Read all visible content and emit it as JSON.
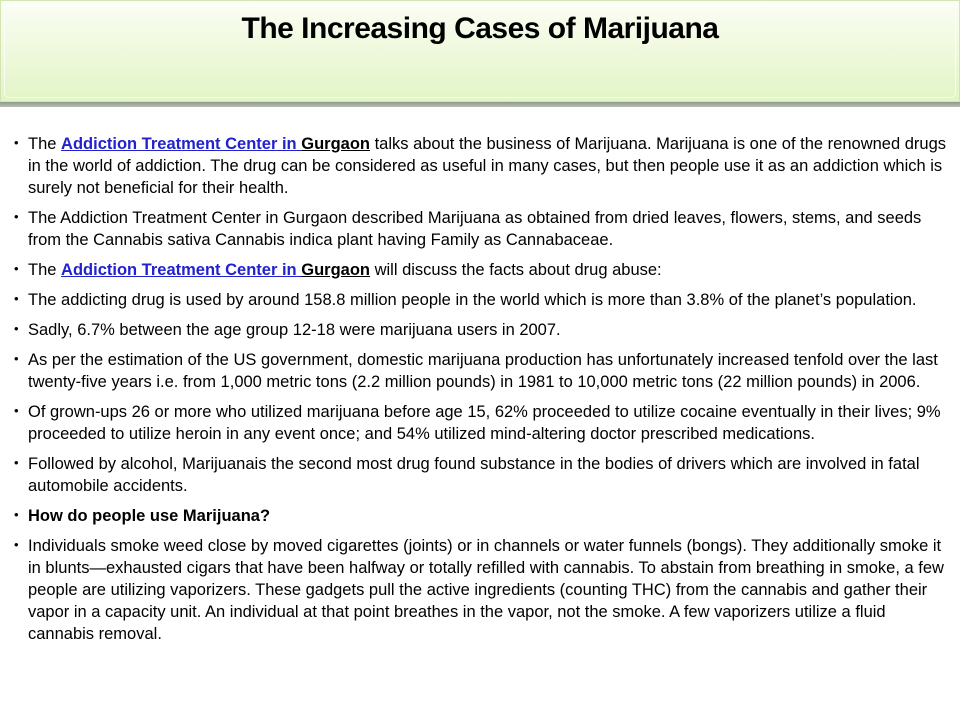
{
  "slide": {
    "title": "The Increasing Cases of Marijuana"
  },
  "theme": {
    "header_gradient_top": "#fbfef5",
    "header_gradient_bottom": "#e2f5c6",
    "header_border": "#d2e6ae",
    "link_color": "#2222cc",
    "text_color": "#000000"
  },
  "bullets": [
    {
      "runs": [
        {
          "t": "The ",
          "s": "plain"
        },
        {
          "t": "Addiction Treatment Center in ",
          "s": "link"
        },
        {
          "t": "Gurgaon",
          "s": "link_dark"
        },
        {
          "t": " talks about the business of Marijuana. Marijuana is one of the renowned drugs in the world of addiction. The drug can be considered as useful in many cases, but then people use it as an addiction which is surely not beneficial for their health.",
          "s": "plain"
        }
      ]
    },
    {
      "runs": [
        {
          "t": "The Addiction Treatment Center in Gurgaon described Marijuana as obtained from dried leaves, flowers, stems, and seeds from the Cannabis sativa Cannabis indica plant having Family as Cannabaceae.",
          "s": "plain"
        }
      ]
    },
    {
      "runs": [
        {
          "t": "The ",
          "s": "plain"
        },
        {
          "t": "Addiction Treatment Center in ",
          "s": "link"
        },
        {
          "t": "Gurgaon",
          "s": "link_dark"
        },
        {
          "t": " will discuss the facts about drug abuse:",
          "s": "plain"
        }
      ]
    },
    {
      "runs": [
        {
          "t": "The addicting drug is used by around 158.8 million people in the world which is more than 3.8% of the planet’s population.",
          "s": "plain"
        }
      ]
    },
    {
      "runs": [
        {
          "t": "Sadly, 6.7% between the age group 12-18 were marijuana users in 2007.",
          "s": "plain"
        }
      ]
    },
    {
      "runs": [
        {
          "t": "As per the estimation of the US government, domestic marijuana production has unfortunately increased tenfold over the last twenty-five years i.e. from 1,000 metric tons (2.2 million pounds) in 1981 to 10,000 metric tons (22 million pounds) in 2006.",
          "s": "plain"
        }
      ]
    },
    {
      "runs": [
        {
          "t": "Of grown-ups 26 or more who utilized marijuana before age 15, 62% proceeded to utilize cocaine eventually in their lives; 9% proceeded to utilize heroin in any event once; and 54% utilized mind-altering doctor prescribed medications.",
          "s": "plain"
        }
      ]
    },
    {
      "runs": [
        {
          "t": "Followed by alcohol, Marijuanais the second most drug found substance in the bodies of drivers which are involved in fatal automobile accidents.",
          "s": "plain"
        }
      ]
    },
    {
      "runs": [
        {
          "t": "How do people use Marijuana?",
          "s": "bold"
        }
      ]
    },
    {
      "runs": [
        {
          "t": "Individuals smoke weed close by moved cigarettes (joints) or in channels or water funnels (bongs). They additionally smoke it in blunts—exhausted cigars that have been halfway or totally refilled with cannabis. To abstain from breathing in smoke, a few people are utilizing vaporizers. These gadgets pull the active ingredients (counting THC) from the cannabis and gather their vapor in a capacity unit. An individual at that point breathes in the vapor, not the smoke. A few vaporizers utilize a fluid cannabis removal.",
          "s": "plain"
        }
      ]
    }
  ]
}
